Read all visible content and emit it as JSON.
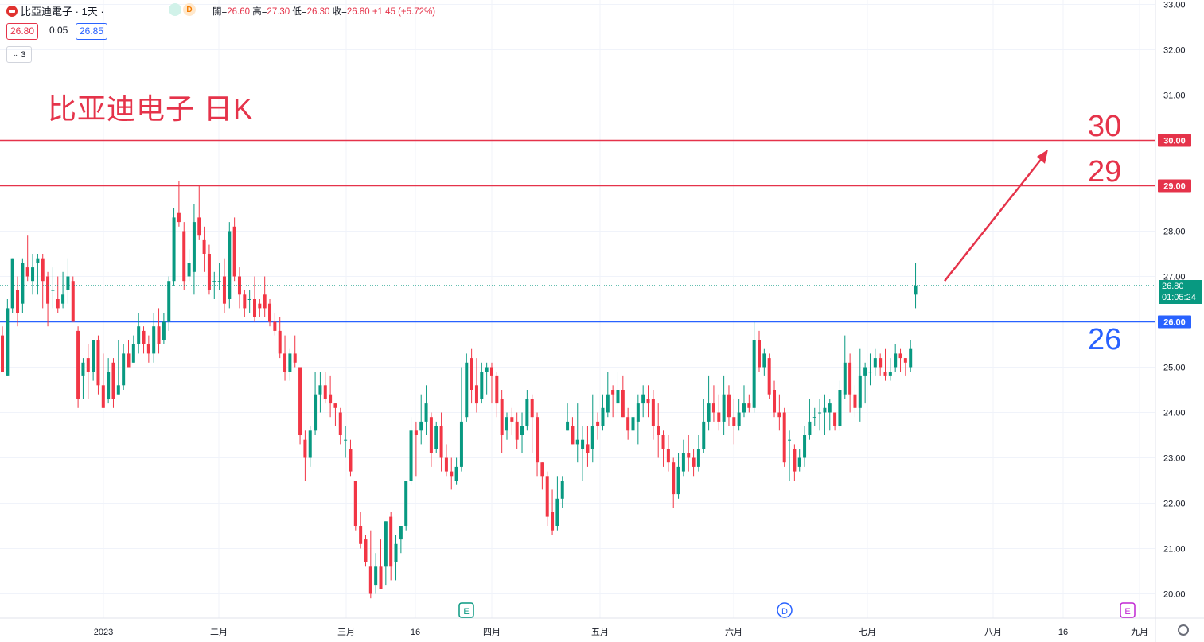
{
  "header": {
    "symbol": "比亞迪電子 · 1天 ·",
    "dot_green": "",
    "dot_orange": "D",
    "ohlc": {
      "open_label": "開=",
      "open": "26.60",
      "high_label": "高=",
      "high": "27.30",
      "low_label": "低=",
      "low": "26.30",
      "close_label": "收=",
      "close": "26.80",
      "change": "+1.45 (+5.72%)"
    },
    "bid": "26.80",
    "spread": "0.05",
    "ask": "26.85",
    "collapse_count": "3"
  },
  "annotation_title": "比亚迪电子 日K",
  "level_labels": {
    "l30": "30",
    "l29": "29",
    "l26": "26"
  },
  "price_badge": {
    "price": "26.80",
    "countdown": "01:05:24"
  },
  "colors": {
    "up": "#089981",
    "down": "#f23645",
    "resistance": "#e5334a",
    "support": "#2962ff",
    "annotation": "#e5334a"
  },
  "events": [
    {
      "letter": "E",
      "x_date": "2023-03-27",
      "color": "#089981"
    },
    {
      "letter": "D",
      "x_date": "2023-06-12",
      "color": "#2962ff"
    },
    {
      "letter": "E",
      "x_date": "2023-08-31",
      "color": "#c026d3"
    }
  ],
  "chart_data": {
    "type": "candlestick",
    "title": "",
    "ylim": [
      19.6,
      33.1
    ],
    "yticks": [
      "33.00",
      "32.00",
      "31.00",
      "30.00",
      "29.00",
      "28.00",
      "27.00",
      "26.00",
      "25.00",
      "24.00",
      "23.00",
      "22.00",
      "21.00",
      "20.00"
    ],
    "xticks": [
      "2023",
      "二月",
      "三月",
      "16",
      "四月",
      "五月",
      "六月",
      "七月",
      "八月",
      "16",
      "九月"
    ],
    "grid": true,
    "horizontal_lines": [
      {
        "price": 30.0,
        "label": "30.00",
        "color": "#e5334a"
      },
      {
        "price": 29.0,
        "label": "29.00",
        "color": "#e5334a"
      },
      {
        "price": 26.0,
        "label": "26.00",
        "color": "#2962ff"
      }
    ],
    "last_price": 26.8,
    "arrow": {
      "from_price": 26.9,
      "to_price": 29.8
    },
    "candles": [
      [
        25.7,
        24.9,
        25.9,
        24.9
      ],
      [
        24.8,
        26.3,
        26.5,
        24.8
      ],
      [
        26.3,
        27.4,
        27.4,
        26.2
      ],
      [
        26.7,
        26.2,
        27.0,
        25.9
      ],
      [
        26.4,
        27.3,
        27.4,
        26.2
      ],
      [
        27.2,
        27.0,
        27.9,
        26.9
      ],
      [
        26.9,
        27.2,
        27.5,
        26.6
      ],
      [
        27.3,
        27.4,
        27.5,
        26.6
      ],
      [
        27.4,
        26.9,
        27.5,
        26.3
      ],
      [
        27.0,
        26.4,
        27.1,
        25.9
      ],
      [
        26.7,
        26.7,
        27.2,
        26.3
      ],
      [
        26.5,
        26.3,
        27.0,
        26.2
      ],
      [
        26.4,
        26.6,
        27.1,
        26.3
      ],
      [
        26.7,
        27.0,
        27.4,
        26.4
      ],
      [
        26.9,
        26.0,
        27.0,
        26.0
      ],
      [
        25.8,
        24.3,
        25.9,
        24.1
      ],
      [
        24.8,
        25.1,
        25.2,
        24.3
      ],
      [
        25.2,
        24.9,
        25.5,
        24.3
      ],
      [
        24.9,
        25.6,
        25.6,
        24.7
      ],
      [
        25.6,
        24.6,
        25.7,
        24.4
      ],
      [
        24.6,
        24.1,
        25.3,
        24.1
      ],
      [
        24.3,
        24.9,
        25.2,
        24.2
      ],
      [
        25.1,
        24.3,
        25.2,
        24.1
      ],
      [
        24.4,
        24.6,
        25.6,
        24.4
      ],
      [
        24.6,
        25.3,
        25.5,
        24.5
      ],
      [
        25.3,
        25.0,
        25.6,
        25.0
      ],
      [
        25.1,
        25.5,
        25.7,
        25.1
      ],
      [
        25.5,
        25.9,
        26.2,
        25.3
      ],
      [
        25.8,
        25.5,
        25.9,
        25.3
      ],
      [
        25.5,
        25.3,
        25.7,
        25.1
      ],
      [
        25.3,
        25.9,
        26.2,
        25.1
      ],
      [
        25.9,
        25.5,
        26.3,
        25.3
      ],
      [
        25.6,
        26.0,
        26.2,
        25.5
      ],
      [
        26.0,
        26.9,
        27.0,
        25.8
      ],
      [
        26.9,
        28.3,
        28.5,
        26.8
      ],
      [
        28.4,
        28.2,
        29.1,
        28.1
      ],
      [
        28.0,
        26.9,
        28.2,
        26.7
      ],
      [
        27.0,
        27.3,
        27.6,
        26.9
      ],
      [
        27.1,
        28.2,
        28.6,
        26.6
      ],
      [
        28.3,
        27.9,
        29.0,
        27.8
      ],
      [
        27.8,
        27.5,
        28.1,
        27.1
      ],
      [
        27.5,
        26.7,
        27.7,
        26.6
      ],
      [
        26.9,
        26.9,
        27.1,
        26.5
      ],
      [
        26.9,
        26.9,
        27.3,
        26.7
      ],
      [
        27.0,
        26.4,
        27.4,
        26.2
      ],
      [
        26.5,
        28.0,
        28.2,
        26.3
      ],
      [
        28.1,
        27.0,
        28.3,
        26.9
      ],
      [
        27.0,
        26.6,
        27.2,
        26.3
      ],
      [
        26.6,
        26.3,
        26.7,
        26.1
      ],
      [
        26.5,
        26.5,
        26.7,
        26.2
      ],
      [
        26.5,
        26.1,
        27.0,
        26.0
      ],
      [
        26.4,
        26.3,
        26.5,
        26.1
      ],
      [
        26.6,
        26.3,
        27.0,
        26.1
      ],
      [
        26.4,
        26.0,
        26.5,
        25.9
      ],
      [
        26.0,
        25.8,
        26.2,
        25.7
      ],
      [
        25.8,
        25.3,
        26.1,
        25.2
      ],
      [
        25.3,
        24.9,
        25.7,
        24.7
      ],
      [
        24.9,
        25.3,
        25.4,
        24.7
      ],
      [
        25.3,
        25.1,
        25.7,
        25.0
      ],
      [
        25.0,
        23.5,
        25.0,
        23.3
      ],
      [
        23.4,
        23.0,
        23.6,
        22.5
      ],
      [
        23.0,
        23.6,
        23.7,
        22.8
      ],
      [
        23.6,
        24.4,
        24.9,
        23.5
      ],
      [
        24.4,
        24.6,
        24.9,
        24.0
      ],
      [
        24.6,
        24.3,
        24.9,
        24.2
      ],
      [
        24.4,
        24.2,
        24.8,
        23.9
      ],
      [
        24.2,
        24.1,
        24.2,
        23.7
      ],
      [
        24.0,
        23.5,
        24.1,
        23.3
      ],
      [
        23.4,
        23.4,
        23.7,
        23.0
      ],
      [
        23.2,
        22.7,
        23.4,
        22.6
      ],
      [
        22.5,
        21.5,
        22.5,
        21.4
      ],
      [
        21.5,
        21.1,
        21.8,
        21.0
      ],
      [
        21.2,
        20.7,
        21.3,
        20.6
      ],
      [
        20.6,
        20.0,
        21.4,
        19.9
      ],
      [
        20.2,
        20.6,
        20.9,
        20.0
      ],
      [
        20.6,
        20.1,
        21.2,
        20.1
      ],
      [
        20.6,
        21.6,
        21.6,
        20.2
      ],
      [
        21.7,
        20.6,
        21.8,
        20.3
      ],
      [
        20.7,
        21.1,
        21.3,
        20.3
      ],
      [
        21.2,
        21.5,
        21.5,
        20.9
      ],
      [
        21.5,
        22.5,
        22.5,
        21.4
      ],
      [
        22.5,
        23.6,
        23.9,
        22.4
      ],
      [
        23.6,
        23.5,
        23.8,
        22.6
      ],
      [
        23.6,
        23.8,
        24.4,
        23.3
      ],
      [
        23.8,
        24.2,
        24.6,
        23.5
      ],
      [
        23.9,
        23.1,
        24.0,
        22.8
      ],
      [
        23.2,
        23.7,
        23.8,
        23.1
      ],
      [
        23.7,
        23.0,
        24.0,
        22.7
      ],
      [
        23.0,
        22.7,
        23.3,
        22.6
      ],
      [
        22.7,
        22.6,
        23.0,
        22.3
      ],
      [
        22.5,
        22.8,
        23.0,
        22.4
      ],
      [
        22.8,
        23.8,
        25.0,
        22.7
      ],
      [
        23.9,
        25.1,
        25.3,
        23.8
      ],
      [
        25.2,
        24.5,
        25.4,
        24.2
      ],
      [
        24.6,
        24.2,
        25.2,
        24.0
      ],
      [
        24.3,
        24.9,
        25.1,
        24.2
      ],
      [
        24.9,
        25.0,
        25.1,
        24.4
      ],
      [
        25.0,
        24.8,
        25.1,
        24.2
      ],
      [
        24.8,
        24.2,
        24.9,
        23.9
      ],
      [
        24.3,
        23.5,
        24.5,
        23.1
      ],
      [
        23.6,
        23.9,
        24.0,
        23.4
      ],
      [
        23.9,
        23.8,
        24.1,
        23.5
      ],
      [
        23.8,
        23.4,
        24.0,
        23.2
      ],
      [
        23.5,
        23.7,
        24.0,
        23.1
      ],
      [
        23.7,
        24.3,
        24.5,
        23.6
      ],
      [
        24.3,
        23.9,
        24.4,
        23.1
      ],
      [
        23.9,
        22.9,
        24.0,
        22.6
      ],
      [
        22.9,
        22.6,
        22.9,
        22.3
      ],
      [
        22.6,
        21.7,
        22.7,
        21.5
      ],
      [
        21.8,
        21.4,
        22.3,
        21.3
      ],
      [
        21.5,
        22.1,
        22.6,
        21.4
      ],
      [
        22.1,
        22.5,
        22.6,
        21.9
      ],
      [
        23.6,
        23.8,
        24.2,
        23.6
      ],
      [
        23.7,
        23.3,
        23.9,
        23.3
      ],
      [
        23.3,
        23.4,
        24.2,
        22.9
      ],
      [
        23.2,
        23.4,
        23.7,
        22.5
      ],
      [
        23.3,
        23.1,
        23.7,
        22.8
      ],
      [
        23.2,
        23.7,
        24.4,
        22.9
      ],
      [
        23.8,
        23.7,
        24.0,
        23.4
      ],
      [
        23.7,
        24.1,
        24.4,
        23.6
      ],
      [
        24.0,
        24.4,
        24.9,
        23.9
      ],
      [
        24.5,
        24.4,
        24.6,
        23.9
      ],
      [
        24.2,
        24.5,
        24.9,
        24.0
      ],
      [
        24.5,
        23.9,
        24.8,
        23.9
      ],
      [
        23.9,
        23.6,
        24.1,
        23.4
      ],
      [
        23.6,
        23.9,
        24.5,
        23.4
      ],
      [
        23.8,
        24.2,
        24.4,
        23.3
      ],
      [
        24.2,
        24.4,
        24.6,
        23.9
      ],
      [
        24.3,
        24.2,
        24.6,
        23.9
      ],
      [
        24.3,
        23.7,
        24.5,
        23.4
      ],
      [
        23.7,
        23.5,
        24.2,
        23.0
      ],
      [
        23.5,
        23.2,
        23.6,
        22.8
      ],
      [
        23.2,
        22.9,
        23.5,
        22.7
      ],
      [
        22.9,
        22.2,
        23.0,
        21.9
      ],
      [
        22.2,
        22.8,
        23.1,
        22.1
      ],
      [
        22.7,
        23.1,
        23.4,
        22.6
      ],
      [
        23.1,
        23.0,
        23.5,
        22.7
      ],
      [
        23.0,
        22.8,
        23.2,
        22.6
      ],
      [
        22.8,
        23.2,
        23.5,
        22.7
      ],
      [
        23.2,
        23.8,
        24.3,
        23.1
      ],
      [
        23.8,
        24.2,
        24.8,
        23.6
      ],
      [
        24.2,
        24.0,
        24.6,
        23.8
      ],
      [
        24.0,
        23.8,
        24.4,
        23.6
      ],
      [
        23.8,
        24.4,
        24.8,
        23.5
      ],
      [
        24.4,
        23.9,
        24.6,
        23.7
      ],
      [
        23.9,
        23.7,
        24.3,
        23.3
      ],
      [
        23.7,
        24.0,
        24.3,
        23.6
      ],
      [
        24.0,
        24.2,
        24.6,
        23.9
      ],
      [
        24.2,
        24.1,
        24.4,
        24.0
      ],
      [
        24.1,
        25.6,
        26.0,
        24.0
      ],
      [
        25.6,
        25.0,
        25.8,
        24.9
      ],
      [
        25.0,
        25.3,
        25.4,
        24.8
      ],
      [
        25.2,
        24.4,
        25.3,
        24.3
      ],
      [
        24.5,
        24.0,
        24.7,
        23.9
      ],
      [
        24.0,
        23.9,
        24.4,
        23.6
      ],
      [
        24.0,
        22.9,
        24.1,
        22.8
      ],
      [
        23.4,
        23.4,
        23.6,
        22.5
      ],
      [
        23.2,
        22.7,
        23.3,
        22.5
      ],
      [
        22.8,
        23.0,
        23.2,
        22.7
      ],
      [
        23.0,
        23.5,
        23.7,
        22.8
      ],
      [
        23.5,
        23.8,
        24.3,
        23.4
      ],
      [
        23.9,
        23.9,
        24.1,
        23.7
      ],
      [
        24.0,
        24.0,
        24.3,
        23.6
      ],
      [
        24.0,
        24.1,
        24.4,
        23.5
      ],
      [
        24.0,
        24.2,
        24.3,
        23.6
      ],
      [
        24.0,
        23.7,
        24.0,
        23.6
      ],
      [
        23.7,
        24.5,
        24.7,
        23.6
      ],
      [
        24.4,
        25.1,
        25.7,
        24.3
      ],
      [
        25.1,
        24.4,
        25.3,
        24.0
      ],
      [
        24.4,
        24.1,
        24.6,
        23.9
      ],
      [
        24.1,
        24.8,
        25.4,
        23.8
      ],
      [
        24.8,
        25.0,
        25.1,
        24.2
      ],
      [
        24.9,
        24.9,
        25.3,
        24.6
      ],
      [
        25.0,
        25.2,
        25.4,
        24.8
      ],
      [
        25.2,
        25.0,
        25.3,
        24.8
      ],
      [
        24.9,
        24.8,
        25.4,
        24.7
      ],
      [
        24.8,
        24.9,
        25.2,
        24.7
      ],
      [
        25.0,
        25.3,
        25.5,
        24.9
      ],
      [
        25.3,
        25.2,
        25.4,
        24.9
      ],
      [
        25.2,
        25.1,
        25.2,
        24.8
      ],
      [
        25.0,
        25.4,
        25.6,
        24.9
      ],
      [
        26.6,
        26.8,
        27.3,
        26.3
      ]
    ]
  }
}
